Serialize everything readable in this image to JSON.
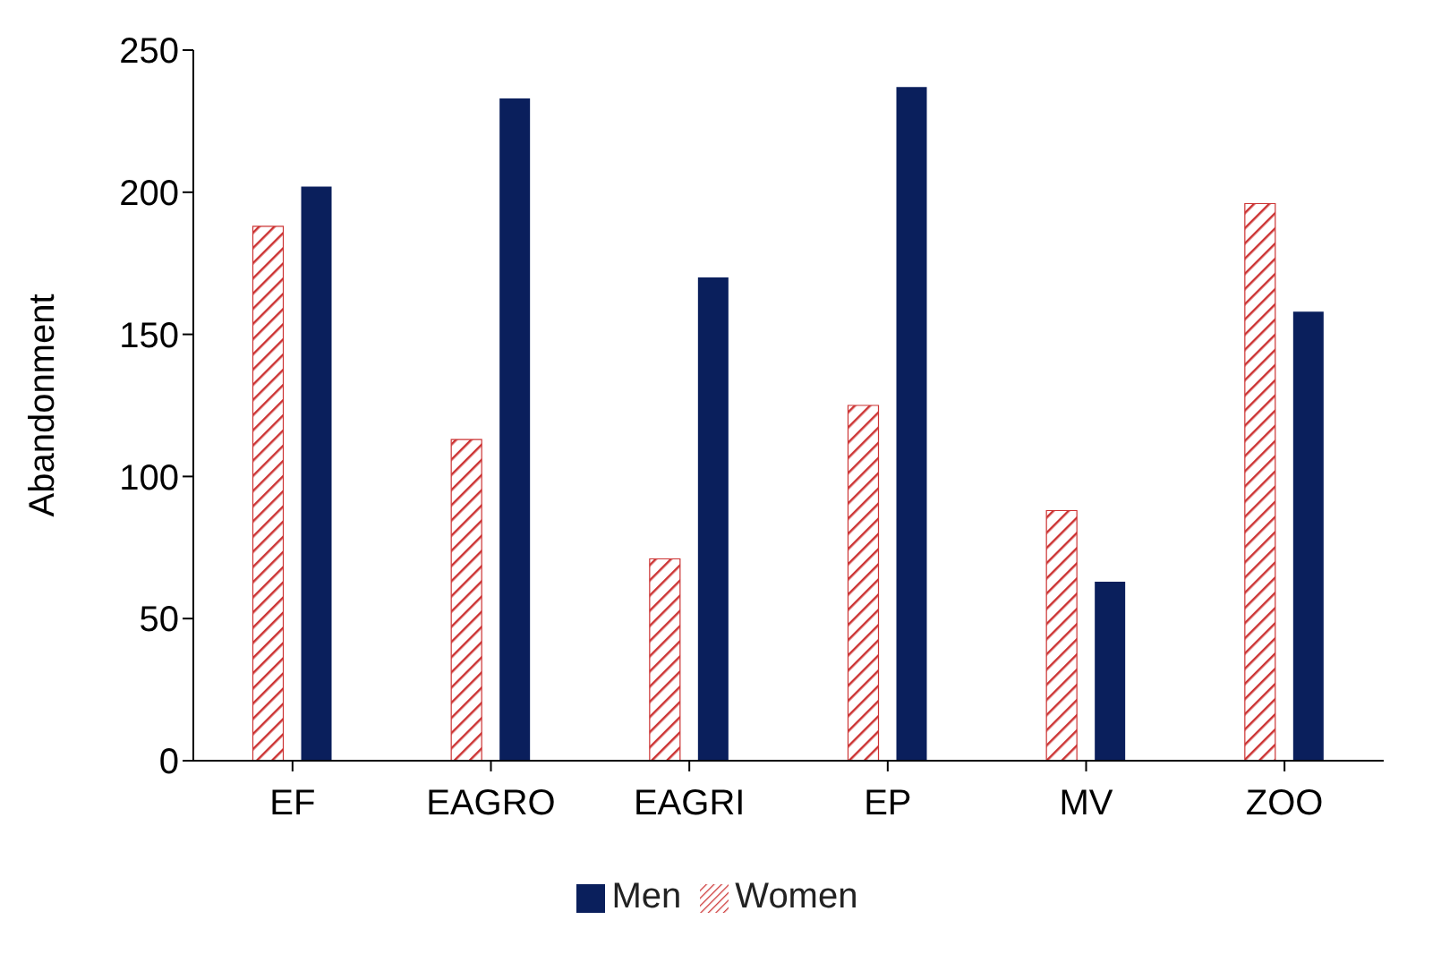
{
  "chart_data": {
    "type": "bar",
    "ylabel": "Abandonment",
    "categories": [
      "EF",
      "EAGRO",
      "EAGRI",
      "EP",
      "MV",
      "ZOO"
    ],
    "series": [
      {
        "name": "Women",
        "color": "#cc3333",
        "values": [
          188,
          113,
          71,
          125,
          88,
          196
        ]
      },
      {
        "name": "Men",
        "color": "#0a1f5c",
        "values": [
          202,
          233,
          170,
          237,
          63,
          158
        ]
      }
    ],
    "ylim": [
      0,
      250
    ],
    "yticks": [
      0,
      50,
      100,
      150,
      200,
      250
    ],
    "grid": false,
    "legend": "bottom"
  }
}
